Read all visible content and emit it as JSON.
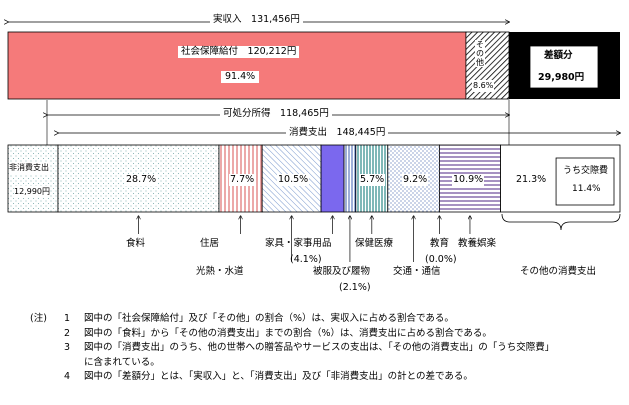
{
  "chart_data": {
    "type": "bar",
    "stacked": "horizontal",
    "income": {
      "label": "実収入",
      "value_text": "131,456円",
      "segments": [
        {
          "name": "社会保障給付",
          "amount_text": "120,212円",
          "pct_text": "91.4%",
          "percent": 91.4,
          "color": "#f57a7a"
        },
        {
          "name": "その他",
          "pct_text": "8.6%",
          "percent": 8.6,
          "pattern": "diagonal"
        }
      ]
    },
    "deficit": {
      "name": "差額分",
      "amount_text": "29,980円",
      "color": "#000000"
    },
    "disposable": {
      "label": "可処分所得",
      "value_text": "118,465円"
    },
    "consumption": {
      "label": "消費支出",
      "value_text": "148,445円"
    },
    "non_consumption": {
      "name": "非消費支出",
      "amount_text": "12,990円"
    },
    "expenditure": [
      {
        "name": "食料",
        "pct_text": "28.7%",
        "percent": 28.7,
        "pattern": "dots"
      },
      {
        "name": "住居",
        "pct_text": "7.7%",
        "percent": 7.7,
        "pattern": "red-vlines"
      },
      {
        "name": "光熱・水道",
        "pct_text": "10.5%",
        "percent": 10.5,
        "pattern": "blue-diag"
      },
      {
        "name": "家具・家事用品",
        "sub_text": "(4.1%)",
        "percent": 4.1,
        "color": "#7b68ee"
      },
      {
        "name": "被服及び履物",
        "sub_text": "(2.1%)",
        "percent": 2.1,
        "pattern": "blue-vlines"
      },
      {
        "name": "保健医療",
        "pct_text": "5.7%",
        "percent": 5.7,
        "pattern": "teal-vlines"
      },
      {
        "name": "交通・通信",
        "pct_text": "9.2%",
        "percent": 9.2,
        "pattern": "dots-blue"
      },
      {
        "name": "教育",
        "sub_text": "(0.0%)",
        "percent": 0.0
      },
      {
        "name": "教養娯楽",
        "pct_text": "10.9%",
        "percent": 10.9,
        "pattern": "purple-hlines"
      },
      {
        "name": "その他の消費支出",
        "pct_text": "21.3%",
        "percent": 21.3,
        "sub_label": "うち交際費",
        "sub_pct_text": "11.4%",
        "sub_percent": 11.4
      }
    ]
  },
  "notes": {
    "head": "(注)",
    "items": [
      {
        "num": "1",
        "text": "図中の「社会保障給付」及び「その他」の割合（%）は、実収入に占める割合である。"
      },
      {
        "num": "2",
        "text": "図中の「食料」から「その他の消費支出」までの割合（%）は、消費支出に占める割合である。"
      },
      {
        "num": "3",
        "text": "図中の「消費支出」のうち、他の世帯への贈答品やサービスの支出は、「その他の消費支出」の「うち交際費」"
      },
      {
        "num": "",
        "text": "に含まれている。"
      },
      {
        "num": "4",
        "text": "図中の「差額分」とは、「実収入」と、「消費支出」及び「非消費支出」の計との差である。"
      }
    ]
  }
}
